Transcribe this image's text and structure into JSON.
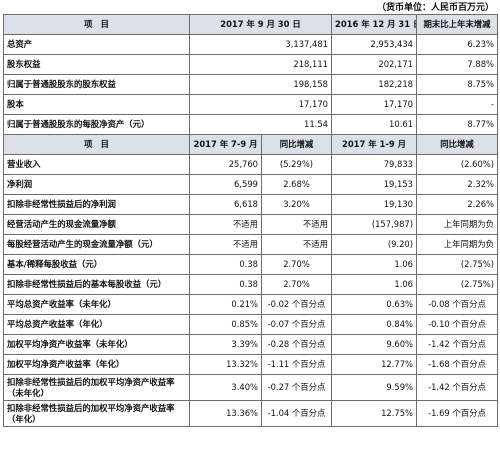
{
  "unit_note": "（货币单位：人民币百万元）",
  "table1": {
    "headers": [
      "项　目",
      "2017 年 9 月 30 日",
      "2016 年 12 月 31 日",
      "期末比上年末增减"
    ],
    "rows": [
      {
        "label": "总资产",
        "v1": "3,137,481",
        "v2": "2,953,434",
        "v3": "6.23%"
      },
      {
        "label": "股东权益",
        "v1": "218,111",
        "v2": "202,171",
        "v3": "7.88%"
      },
      {
        "label": "归属于普通股股东的股东权益",
        "v1": "198,158",
        "v2": "182,218",
        "v3": "8.75%"
      },
      {
        "label": "股本",
        "v1": "17,170",
        "v2": "17,170",
        "v3": "-"
      },
      {
        "label": "归属于普通股股东的每股净资产（元）",
        "v1": "11.54",
        "v2": "10.61",
        "v3": "8.77%"
      }
    ]
  },
  "table2": {
    "headers": [
      "项　目",
      "2017 年 7-9 月",
      "同比增减",
      "2017 年 1-9 月",
      "同比增减"
    ],
    "rows": [
      {
        "label": "营业收入",
        "v1": "25,760",
        "v2": "(5.29%)",
        "v3": "79,833",
        "v4": "(2.60%)"
      },
      {
        "label": "净利润",
        "v1": "6,599",
        "v2": "2.68%",
        "v3": "19,153",
        "v4": "2.32%"
      },
      {
        "label": "扣除非经常性损益后的净利润",
        "v1": "6,618",
        "v2": "3.20%",
        "v3": "19,130",
        "v4": "2.26%"
      },
      {
        "label": "经营活动产生的现金流量净额",
        "v1": "不适用",
        "v2": "不适用",
        "v3": "(157,987)",
        "v4": "上年同期为负"
      },
      {
        "label": "每股经营活动产生的现金流量净额（元）",
        "v1": "不适用",
        "v2": "不适用",
        "v3": "(9.20)",
        "v4": "上年同期为负"
      },
      {
        "label": "基本/稀释每股收益（元）",
        "v1": "0.38",
        "v2": "2.70%",
        "v3": "1.06",
        "v4": "(2.75%)"
      },
      {
        "label": "扣除非经常性损益后的基本每股收益（元）",
        "v1": "0.38",
        "v2": "2.70%",
        "v3": "1.06",
        "v4": "(2.75%)"
      },
      {
        "label": "平均总资产收益率（未年化）",
        "v1": "0.21%",
        "v2": "-0.02 个百分点",
        "v3": "0.63%",
        "v4": "-0.08 个百分点"
      },
      {
        "label": "平均总资产收益率（年化）",
        "v1": "0.85%",
        "v2": "-0.07 个百分点",
        "v3": "0.84%",
        "v4": "-0.10 个百分点"
      },
      {
        "label": "加权平均净资产收益率（未年化）",
        "v1": "3.39%",
        "v2": "-0.28 个百分点",
        "v3": "9.60%",
        "v4": "-1.42 个百分点"
      },
      {
        "label": "加权平均净资产收益率（年化）",
        "v1": "13.32%",
        "v2": "-1.11 个百分点",
        "v3": "12.77%",
        "v4": "-1.68 个百分点"
      },
      {
        "label": "扣除非经常性损益后的加权平均净资产收益率（未年化）",
        "v1": "3.40%",
        "v2": "-0.27 个百分点",
        "v3": "9.59%",
        "v4": "-1.42 个百分点"
      },
      {
        "label": "扣除非经常性损益后的加权平均净资产收益率（年化）",
        "v1": "13.36%",
        "v2": "-1.04 个百分点",
        "v3": "12.75%",
        "v4": "-1.69 个百分点"
      }
    ]
  }
}
